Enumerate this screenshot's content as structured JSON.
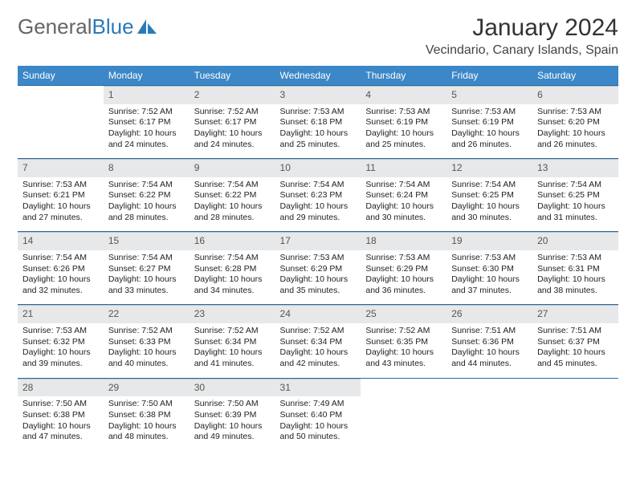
{
  "logo": {
    "text1": "General",
    "text2": "Blue"
  },
  "title": "January 2024",
  "location": "Vecindario, Canary Islands, Spain",
  "colors": {
    "header_bg": "#3b87c8",
    "header_text": "#ffffff",
    "daynum_bg": "#e7e8e9",
    "week_border": "#2a6aa0"
  },
  "weekdays": [
    "Sunday",
    "Monday",
    "Tuesday",
    "Wednesday",
    "Thursday",
    "Friday",
    "Saturday"
  ],
  "weeks": [
    [
      {
        "n": "",
        "sr": "",
        "ss": "",
        "dl": ""
      },
      {
        "n": "1",
        "sr": "Sunrise: 7:52 AM",
        "ss": "Sunset: 6:17 PM",
        "dl": "Daylight: 10 hours and 24 minutes."
      },
      {
        "n": "2",
        "sr": "Sunrise: 7:52 AM",
        "ss": "Sunset: 6:17 PM",
        "dl": "Daylight: 10 hours and 24 minutes."
      },
      {
        "n": "3",
        "sr": "Sunrise: 7:53 AM",
        "ss": "Sunset: 6:18 PM",
        "dl": "Daylight: 10 hours and 25 minutes."
      },
      {
        "n": "4",
        "sr": "Sunrise: 7:53 AM",
        "ss": "Sunset: 6:19 PM",
        "dl": "Daylight: 10 hours and 25 minutes."
      },
      {
        "n": "5",
        "sr": "Sunrise: 7:53 AM",
        "ss": "Sunset: 6:19 PM",
        "dl": "Daylight: 10 hours and 26 minutes."
      },
      {
        "n": "6",
        "sr": "Sunrise: 7:53 AM",
        "ss": "Sunset: 6:20 PM",
        "dl": "Daylight: 10 hours and 26 minutes."
      }
    ],
    [
      {
        "n": "7",
        "sr": "Sunrise: 7:53 AM",
        "ss": "Sunset: 6:21 PM",
        "dl": "Daylight: 10 hours and 27 minutes."
      },
      {
        "n": "8",
        "sr": "Sunrise: 7:54 AM",
        "ss": "Sunset: 6:22 PM",
        "dl": "Daylight: 10 hours and 28 minutes."
      },
      {
        "n": "9",
        "sr": "Sunrise: 7:54 AM",
        "ss": "Sunset: 6:22 PM",
        "dl": "Daylight: 10 hours and 28 minutes."
      },
      {
        "n": "10",
        "sr": "Sunrise: 7:54 AM",
        "ss": "Sunset: 6:23 PM",
        "dl": "Daylight: 10 hours and 29 minutes."
      },
      {
        "n": "11",
        "sr": "Sunrise: 7:54 AM",
        "ss": "Sunset: 6:24 PM",
        "dl": "Daylight: 10 hours and 30 minutes."
      },
      {
        "n": "12",
        "sr": "Sunrise: 7:54 AM",
        "ss": "Sunset: 6:25 PM",
        "dl": "Daylight: 10 hours and 30 minutes."
      },
      {
        "n": "13",
        "sr": "Sunrise: 7:54 AM",
        "ss": "Sunset: 6:25 PM",
        "dl": "Daylight: 10 hours and 31 minutes."
      }
    ],
    [
      {
        "n": "14",
        "sr": "Sunrise: 7:54 AM",
        "ss": "Sunset: 6:26 PM",
        "dl": "Daylight: 10 hours and 32 minutes."
      },
      {
        "n": "15",
        "sr": "Sunrise: 7:54 AM",
        "ss": "Sunset: 6:27 PM",
        "dl": "Daylight: 10 hours and 33 minutes."
      },
      {
        "n": "16",
        "sr": "Sunrise: 7:54 AM",
        "ss": "Sunset: 6:28 PM",
        "dl": "Daylight: 10 hours and 34 minutes."
      },
      {
        "n": "17",
        "sr": "Sunrise: 7:53 AM",
        "ss": "Sunset: 6:29 PM",
        "dl": "Daylight: 10 hours and 35 minutes."
      },
      {
        "n": "18",
        "sr": "Sunrise: 7:53 AM",
        "ss": "Sunset: 6:29 PM",
        "dl": "Daylight: 10 hours and 36 minutes."
      },
      {
        "n": "19",
        "sr": "Sunrise: 7:53 AM",
        "ss": "Sunset: 6:30 PM",
        "dl": "Daylight: 10 hours and 37 minutes."
      },
      {
        "n": "20",
        "sr": "Sunrise: 7:53 AM",
        "ss": "Sunset: 6:31 PM",
        "dl": "Daylight: 10 hours and 38 minutes."
      }
    ],
    [
      {
        "n": "21",
        "sr": "Sunrise: 7:53 AM",
        "ss": "Sunset: 6:32 PM",
        "dl": "Daylight: 10 hours and 39 minutes."
      },
      {
        "n": "22",
        "sr": "Sunrise: 7:52 AM",
        "ss": "Sunset: 6:33 PM",
        "dl": "Daylight: 10 hours and 40 minutes."
      },
      {
        "n": "23",
        "sr": "Sunrise: 7:52 AM",
        "ss": "Sunset: 6:34 PM",
        "dl": "Daylight: 10 hours and 41 minutes."
      },
      {
        "n": "24",
        "sr": "Sunrise: 7:52 AM",
        "ss": "Sunset: 6:34 PM",
        "dl": "Daylight: 10 hours and 42 minutes."
      },
      {
        "n": "25",
        "sr": "Sunrise: 7:52 AM",
        "ss": "Sunset: 6:35 PM",
        "dl": "Daylight: 10 hours and 43 minutes."
      },
      {
        "n": "26",
        "sr": "Sunrise: 7:51 AM",
        "ss": "Sunset: 6:36 PM",
        "dl": "Daylight: 10 hours and 44 minutes."
      },
      {
        "n": "27",
        "sr": "Sunrise: 7:51 AM",
        "ss": "Sunset: 6:37 PM",
        "dl": "Daylight: 10 hours and 45 minutes."
      }
    ],
    [
      {
        "n": "28",
        "sr": "Sunrise: 7:50 AM",
        "ss": "Sunset: 6:38 PM",
        "dl": "Daylight: 10 hours and 47 minutes."
      },
      {
        "n": "29",
        "sr": "Sunrise: 7:50 AM",
        "ss": "Sunset: 6:38 PM",
        "dl": "Daylight: 10 hours and 48 minutes."
      },
      {
        "n": "30",
        "sr": "Sunrise: 7:50 AM",
        "ss": "Sunset: 6:39 PM",
        "dl": "Daylight: 10 hours and 49 minutes."
      },
      {
        "n": "31",
        "sr": "Sunrise: 7:49 AM",
        "ss": "Sunset: 6:40 PM",
        "dl": "Daylight: 10 hours and 50 minutes."
      },
      {
        "n": "",
        "sr": "",
        "ss": "",
        "dl": ""
      },
      {
        "n": "",
        "sr": "",
        "ss": "",
        "dl": ""
      },
      {
        "n": "",
        "sr": "",
        "ss": "",
        "dl": ""
      }
    ]
  ]
}
